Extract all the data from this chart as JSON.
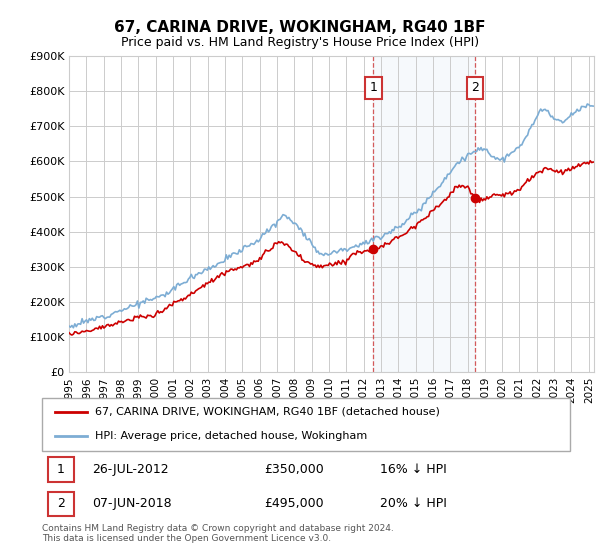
{
  "title": "67, CARINA DRIVE, WOKINGHAM, RG40 1BF",
  "subtitle": "Price paid vs. HM Land Registry's House Price Index (HPI)",
  "ylim": [
    0,
    900000
  ],
  "xlim_start": 1995,
  "xlim_end": 2025.3,
  "transaction1": {
    "date_num": 2012.57,
    "price": 350000,
    "label": "1",
    "date_str": "26-JUL-2012",
    "pct": "16% ↓ HPI"
  },
  "transaction2": {
    "date_num": 2018.44,
    "price": 495000,
    "label": "2",
    "date_str": "07-JUN-2018",
    "pct": "20% ↓ HPI"
  },
  "legend_line1": "67, CARINA DRIVE, WOKINGHAM, RG40 1BF (detached house)",
  "legend_line2": "HPI: Average price, detached house, Wokingham",
  "footer": "Contains HM Land Registry data © Crown copyright and database right 2024.\nThis data is licensed under the Open Government Licence v3.0.",
  "red_color": "#cc0000",
  "blue_color": "#7dadd4",
  "blue_fill": "#dce9f5",
  "annotation_box_color": "#cc3333",
  "background_color": "#ffffff",
  "grid_color": "#cccccc"
}
